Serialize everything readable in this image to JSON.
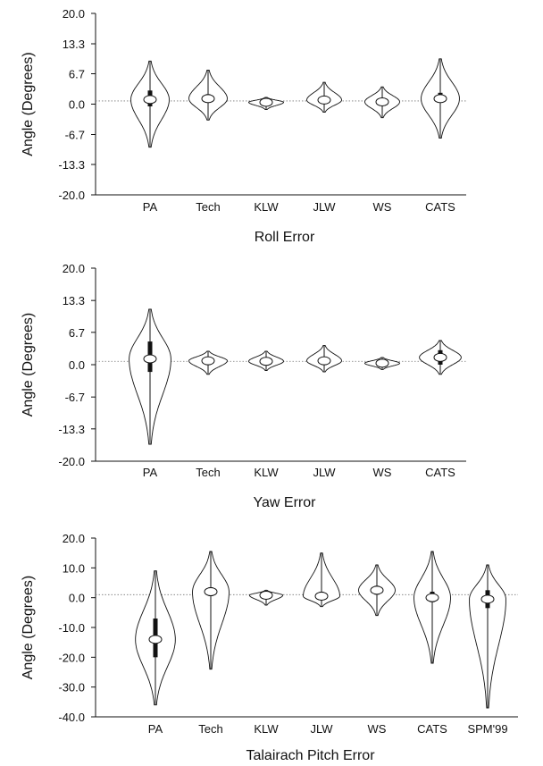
{
  "chart_data": [
    {
      "type": "violin",
      "title": "Roll Error",
      "ylabel": "Angle (Degrees)",
      "ylim": [
        -20.0,
        20.0
      ],
      "yticks": [
        "20.0",
        "13.3",
        "6.7",
        "0.0",
        "-6.7",
        "-13.3",
        "-20.0"
      ],
      "yticks_values": [
        20.0,
        13.3,
        6.7,
        0.0,
        -6.7,
        -13.3,
        -20.0
      ],
      "reference_line": 0.7,
      "categories": [
        "PA",
        "Tech",
        "KLW",
        "JLW",
        "WS",
        "CATS"
      ],
      "series": [
        {
          "category": "PA",
          "min": -9.5,
          "max": 9.5,
          "q1": -0.5,
          "median": 1.0,
          "q3": 3.0,
          "peak": 1.0,
          "halfwidth": 0.55
        },
        {
          "category": "Tech",
          "min": -3.5,
          "max": 7.5,
          "q1": 0.3,
          "median": 1.2,
          "q3": 2.2,
          "peak": 1.2,
          "halfwidth": 0.55
        },
        {
          "category": "KLW",
          "min": -1.2,
          "max": 1.5,
          "q1": 0.0,
          "median": 0.4,
          "q3": 0.9,
          "peak": 0.4,
          "halfwidth": 0.5
        },
        {
          "category": "JLW",
          "min": -1.8,
          "max": 4.8,
          "q1": 0.3,
          "median": 0.9,
          "q3": 1.8,
          "peak": 0.9,
          "halfwidth": 0.5
        },
        {
          "category": "WS",
          "min": -3.0,
          "max": 3.8,
          "q1": 0.0,
          "median": 0.5,
          "q3": 1.2,
          "peak": 0.5,
          "halfwidth": 0.5
        },
        {
          "category": "CATS",
          "min": -7.5,
          "max": 10.0,
          "q1": 0.3,
          "median": 1.2,
          "q3": 2.5,
          "peak": 1.2,
          "halfwidth": 0.55
        }
      ]
    },
    {
      "type": "violin",
      "title": "Yaw Error",
      "ylabel": "Angle (Degrees)",
      "ylim": [
        -20.0,
        20.0
      ],
      "yticks": [
        "20.0",
        "13.3",
        "6.7",
        "0.0",
        "-6.7",
        "-13.3",
        "-20.0"
      ],
      "yticks_values": [
        20.0,
        13.3,
        6.7,
        0.0,
        -6.7,
        -13.3,
        -20.0
      ],
      "reference_line": 0.7,
      "categories": [
        "PA",
        "Tech",
        "KLW",
        "JLW",
        "WS",
        "CATS"
      ],
      "series": [
        {
          "category": "PA",
          "min": -16.5,
          "max": 11.5,
          "q1": -1.5,
          "median": 1.2,
          "q3": 4.8,
          "peak": 1.2,
          "halfwidth": 0.6
        },
        {
          "category": "Tech",
          "min": -2.0,
          "max": 2.8,
          "q1": 0.0,
          "median": 0.8,
          "q3": 1.6,
          "peak": 0.8,
          "halfwidth": 0.55
        },
        {
          "category": "KLW",
          "min": -1.2,
          "max": 2.8,
          "q1": 0.0,
          "median": 0.7,
          "q3": 1.3,
          "peak": 0.7,
          "halfwidth": 0.5
        },
        {
          "category": "JLW",
          "min": -1.5,
          "max": 4.0,
          "q1": 0.0,
          "median": 0.8,
          "q3": 1.6,
          "peak": 0.8,
          "halfwidth": 0.5
        },
        {
          "category": "WS",
          "min": -1.0,
          "max": 1.5,
          "q1": -0.3,
          "median": 0.3,
          "q3": 0.8,
          "peak": 0.3,
          "halfwidth": 0.5
        },
        {
          "category": "CATS",
          "min": -2.0,
          "max": 5.0,
          "q1": 0.0,
          "median": 1.5,
          "q3": 3.0,
          "peak": 1.5,
          "halfwidth": 0.6
        }
      ]
    },
    {
      "type": "violin",
      "title": "Talairach Pitch Error",
      "ylabel": "Angle (Degrees)",
      "ylim": [
        -40.0,
        20.0
      ],
      "yticks": [
        "20.0",
        "10.0",
        "0.0",
        "-10.0",
        "-20.0",
        "-30.0",
        "-40.0"
      ],
      "yticks_values": [
        20.0,
        10.0,
        0.0,
        -10.0,
        -20.0,
        -30.0,
        -40.0
      ],
      "reference_line": 1.0,
      "categories": [
        "PA",
        "Tech",
        "KLW",
        "JLW",
        "WS",
        "CATS",
        "SPM'99"
      ],
      "series": [
        {
          "category": "PA",
          "min": -36.0,
          "max": 9.0,
          "q1": -20.0,
          "median": -14.0,
          "q3": -7.0,
          "peak": -14.0,
          "halfwidth": 0.6
        },
        {
          "category": "Tech",
          "min": -24.0,
          "max": 15.5,
          "q1": 0.5,
          "median": 2.0,
          "q3": 3.5,
          "peak": 2.0,
          "halfwidth": 0.55
        },
        {
          "category": "KLW",
          "min": -2.5,
          "max": 2.5,
          "q1": 0.0,
          "median": 0.8,
          "q3": 1.5,
          "peak": 0.8,
          "halfwidth": 0.5
        },
        {
          "category": "JLW",
          "min": -3.0,
          "max": 15.0,
          "q1": -0.5,
          "median": 0.5,
          "q3": 2.0,
          "peak": 0.5,
          "halfwidth": 0.55
        },
        {
          "category": "WS",
          "min": -6.0,
          "max": 11.0,
          "q1": 1.0,
          "median": 2.5,
          "q3": 4.0,
          "peak": 2.5,
          "halfwidth": 0.55
        },
        {
          "category": "CATS",
          "min": -22.0,
          "max": 15.5,
          "q1": -1.5,
          "median": 0.0,
          "q3": 2.0,
          "peak": 0.0,
          "halfwidth": 0.55
        },
        {
          "category": "SPM'99",
          "min": -37.0,
          "max": 11.0,
          "q1": -3.5,
          "median": -0.5,
          "q3": 2.5,
          "peak": -0.5,
          "halfwidth": 0.55
        }
      ]
    }
  ]
}
